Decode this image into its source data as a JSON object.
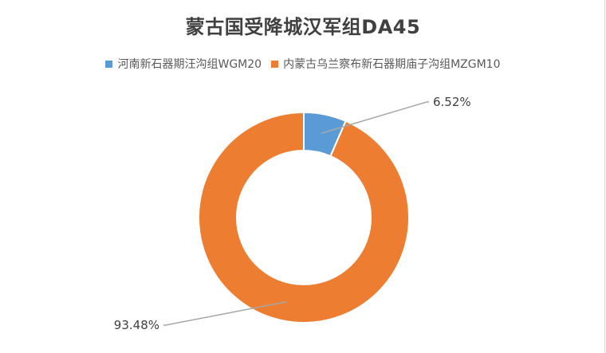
{
  "colors": {
    "series_1": "#5b9bd5",
    "series_2": "#ed7d31",
    "leader": "#a6a6a6"
  },
  "chart_data": {
    "type": "pie",
    "title": "蒙古国受降城汉军组DA45",
    "legend_position": "top",
    "donut": true,
    "categories": [
      "河南新石器期汪沟组WGM20",
      "内蒙古乌兰察布新石器期庙子沟组MZGM10"
    ],
    "values": [
      6.52,
      93.48
    ],
    "labels": [
      "6.52%",
      "93.48%"
    ]
  }
}
